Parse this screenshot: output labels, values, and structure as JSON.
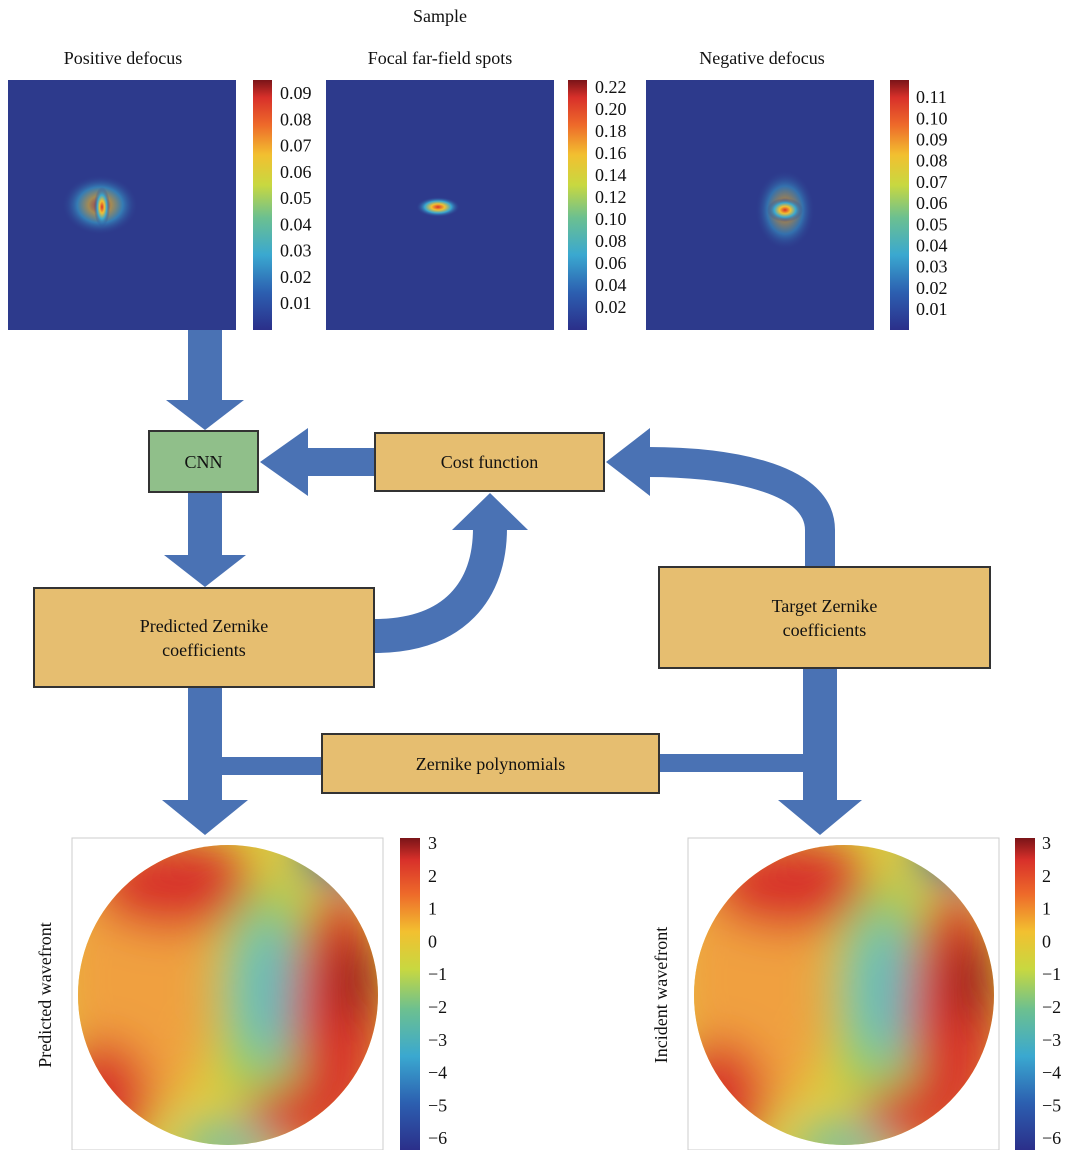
{
  "header": {
    "title": "Sample"
  },
  "panels": [
    {
      "label": "Positive defocus",
      "colorbar": [
        "0.09",
        "0.08",
        "0.07",
        "0.06",
        "0.05",
        "0.04",
        "0.03",
        "0.02",
        "0.01"
      ]
    },
    {
      "label": "Focal far-field spots",
      "colorbar": [
        "0.22",
        "0.20",
        "0.18",
        "0.16",
        "0.14",
        "0.12",
        "0.10",
        "0.08",
        "0.06",
        "0.04",
        "0.02"
      ]
    },
    {
      "label": "Negative defocus",
      "colorbar": [
        "0.11",
        "0.10",
        "0.09",
        "0.08",
        "0.07",
        "0.06",
        "0.05",
        "0.04",
        "0.03",
        "0.02",
        "0.01"
      ]
    }
  ],
  "nodes": [
    {
      "label": "CNN"
    },
    {
      "label": "Cost function"
    },
    {
      "label": "Predicted Zernike coefficients"
    },
    {
      "label": "Target Zernike coefficients"
    },
    {
      "label": "Zernike polynomials"
    }
  ],
  "wavefronts": [
    {
      "label": "Predicted wavefront",
      "colorbar": [
        "3",
        "2",
        "1",
        "0",
        "−1",
        "−2",
        "−3",
        "−4",
        "−5",
        "−6"
      ]
    },
    {
      "label": "Incident wavefront",
      "colorbar": [
        "3",
        "2",
        "1",
        "0",
        "−1",
        "−2",
        "−3",
        "−4",
        "−5",
        "−6"
      ]
    }
  ]
}
